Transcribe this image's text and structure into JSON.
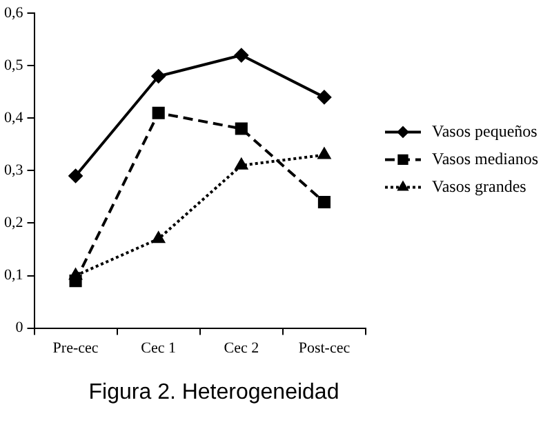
{
  "chart_data": {
    "type": "line",
    "title": "Figura 2. Heterogeneidad",
    "categories": [
      "Pre-cec",
      "Cec 1",
      "Cec 2",
      "Post-cec"
    ],
    "series": [
      {
        "name": "Vasos pequeños",
        "color": "#000000",
        "values": [
          0.29,
          0.48,
          0.52,
          0.44
        ],
        "marker": "diamond",
        "line_style": "solid"
      },
      {
        "name": "Vasos medianos",
        "color": "#000000",
        "values": [
          0.09,
          0.41,
          0.38,
          0.24
        ],
        "marker": "square",
        "line_style": "dashed"
      },
      {
        "name": "Vasos grandes",
        "color": "#000000",
        "values": [
          0.1,
          0.17,
          0.31,
          0.33
        ],
        "marker": "triangle",
        "line_style": "dotted"
      }
    ],
    "ylim": [
      0,
      0.6
    ],
    "yticks": [
      0,
      {
        "value": 0.1,
        "label": "0,1"
      },
      {
        "value": 0.2,
        "label": "0,2"
      },
      {
        "value": 0.3,
        "label": "0,3"
      },
      {
        "value": 0.4,
        "label": "0,4"
      },
      {
        "value": 0.5,
        "label": "0,5"
      },
      {
        "value": 0.6,
        "label": "0,6"
      }
    ],
    "grid": false,
    "legend": "right"
  }
}
